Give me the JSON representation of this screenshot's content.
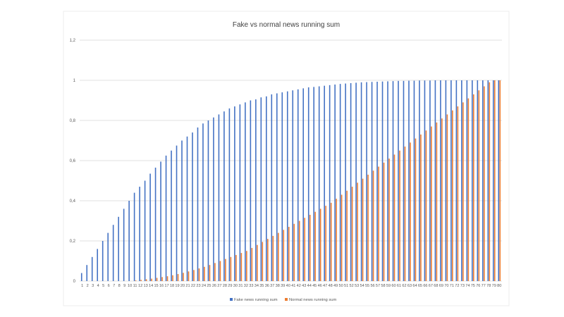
{
  "chart_data": {
    "type": "bar",
    "title": "Fake vs normal news running sum",
    "xlabel": "",
    "ylabel": "",
    "ylim": [
      0,
      1.2
    ],
    "yticks": [
      "0",
      "0,2",
      "0,4",
      "0,6",
      "0,8",
      "1",
      "1,2"
    ],
    "grid": true,
    "legend_position": "bottom",
    "categories": [
      "1",
      "2",
      "3",
      "4",
      "5",
      "6",
      "7",
      "8",
      "9",
      "10",
      "11",
      "12",
      "13",
      "14",
      "15",
      "16",
      "17",
      "18",
      "19",
      "20",
      "21",
      "22",
      "23",
      "24",
      "25",
      "26",
      "27",
      "28",
      "29",
      "30",
      "31",
      "32",
      "33",
      "34",
      "35",
      "36",
      "37",
      "38",
      "39",
      "40",
      "41",
      "42",
      "43",
      "44",
      "45",
      "46",
      "47",
      "48",
      "49",
      "50",
      "51",
      "52",
      "53",
      "54",
      "55",
      "56",
      "57",
      "58",
      "59",
      "60",
      "61",
      "62",
      "63",
      "64",
      "65",
      "66",
      "67",
      "68",
      "69",
      "70",
      "71",
      "72",
      "73",
      "74",
      "75",
      "76",
      "77",
      "78",
      "79",
      "80"
    ],
    "series": [
      {
        "name": "Fake news running sum",
        "color": "#4472c4",
        "values": [
          0.04,
          0.08,
          0.12,
          0.16,
          0.2,
          0.24,
          0.28,
          0.32,
          0.36,
          0.4,
          0.44,
          0.47,
          0.5,
          0.535,
          0.565,
          0.595,
          0.625,
          0.65,
          0.675,
          0.7,
          0.72,
          0.74,
          0.765,
          0.785,
          0.8,
          0.815,
          0.83,
          0.845,
          0.86,
          0.87,
          0.88,
          0.89,
          0.9,
          0.905,
          0.915,
          0.92,
          0.93,
          0.935,
          0.94,
          0.945,
          0.95,
          0.955,
          0.96,
          0.965,
          0.967,
          0.97,
          0.973,
          0.976,
          0.979,
          0.982,
          0.984,
          0.986,
          0.988,
          0.99,
          0.991,
          0.992,
          0.993,
          0.994,
          0.995,
          0.996,
          0.997,
          0.997,
          0.998,
          0.998,
          0.999,
          0.999,
          0.999,
          1,
          1,
          1,
          1,
          1,
          1,
          1,
          1,
          1,
          1,
          1,
          1,
          1
        ]
      },
      {
        "name": "Normal news running sum",
        "color": "#ed7d31",
        "values": [
          0,
          0,
          0,
          0,
          0,
          0,
          0,
          0,
          0,
          0,
          0.003,
          0.006,
          0.009,
          0.012,
          0.016,
          0.02,
          0.024,
          0.029,
          0.035,
          0.041,
          0.048,
          0.055,
          0.063,
          0.071,
          0.08,
          0.09,
          0.1,
          0.11,
          0.12,
          0.13,
          0.14,
          0.15,
          0.165,
          0.18,
          0.195,
          0.21,
          0.225,
          0.24,
          0.255,
          0.27,
          0.285,
          0.3,
          0.315,
          0.33,
          0.345,
          0.36,
          0.375,
          0.39,
          0.41,
          0.43,
          0.45,
          0.47,
          0.49,
          0.51,
          0.53,
          0.55,
          0.57,
          0.59,
          0.61,
          0.63,
          0.65,
          0.67,
          0.69,
          0.71,
          0.73,
          0.75,
          0.77,
          0.79,
          0.81,
          0.83,
          0.85,
          0.87,
          0.89,
          0.91,
          0.93,
          0.95,
          0.97,
          0.99,
          1,
          1
        ]
      }
    ]
  }
}
